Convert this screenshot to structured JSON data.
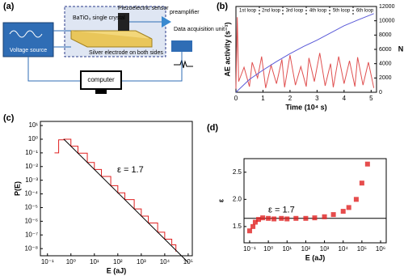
{
  "diagram": {
    "panel": "(a)",
    "voltage": "Voltage source",
    "crystal": "BaTiO₃ single crystal",
    "sensor": "Piezoelectric sensor",
    "preamp": "preamplifier",
    "daq": "Data acquisition unit",
    "electrode": "Silver electrode on both sides",
    "computer": "computer"
  },
  "chart_data": [
    {
      "type": "line",
      "panel": "(b)",
      "x_label": "Time (10⁴ s)",
      "y_label": "AE activity (s⁻¹)",
      "y2_label": "N",
      "loops": [
        "1st loop",
        "2nd loop",
        "3rd loop",
        "4th loop",
        "5th loop",
        "6th loop"
      ],
      "xlim": [
        0,
        5.2
      ],
      "xticks": [
        0,
        1,
        2,
        3,
        4,
        5
      ],
      "ylim": [
        0,
        12
      ],
      "y2lim": [
        0,
        12000
      ],
      "y2ticks": [
        0,
        2000,
        4000,
        6000,
        8000,
        10000,
        12000
      ],
      "series": [
        {
          "color": "#e05050",
          "x": [
            0,
            0.05,
            0.1,
            0.3,
            0.5,
            0.6,
            0.8,
            0.95,
            1.1,
            1.3,
            1.5,
            1.7,
            1.8,
            2.0,
            2.2,
            2.4,
            2.6,
            2.7,
            2.9,
            3.1,
            3.3,
            3.5,
            3.6,
            3.8,
            4.0,
            4.2,
            4.4,
            4.5,
            4.7,
            4.9,
            5.1
          ],
          "values": [
            0.5,
            10.5,
            1.5,
            3.5,
            0.8,
            4.2,
            2.0,
            5.0,
            0.6,
            3.8,
            1.2,
            4.6,
            0.7,
            5.2,
            1.0,
            3.6,
            0.8,
            4.8,
            1.5,
            5.5,
            0.9,
            4.0,
            0.7,
            5.0,
            1.2,
            4.4,
            0.8,
            4.9,
            1.0,
            4.2,
            0.6
          ]
        },
        {
          "color": "#5a5ad8",
          "axis": "y2",
          "x": [
            0,
            0.5,
            1.0,
            1.5,
            2.0,
            2.5,
            3.0,
            3.5,
            4.0,
            4.5,
            5.1
          ],
          "values": [
            0,
            1800,
            3100,
            4300,
            5400,
            6400,
            7300,
            8300,
            9300,
            10100,
            11000
          ]
        }
      ]
    },
    {
      "type": "line",
      "panel": "(c)",
      "x_label": "E (aJ)",
      "y_label": "P(E)",
      "annotation": "ε = 1.7",
      "log": true,
      "xlim": [
        0.05,
        150000
      ],
      "xticks": [
        {
          "value": 0.1,
          "label": "10⁻¹"
        },
        {
          "value": 1,
          "label": "10⁰"
        },
        {
          "value": 10,
          "label": "10¹"
        },
        {
          "value": 100,
          "label": "10²"
        },
        {
          "value": 1000,
          "label": "10³"
        },
        {
          "value": 10000,
          "label": "10⁴"
        },
        {
          "value": 100000,
          "label": "10⁵"
        }
      ],
      "ylim": [
        3e-09,
        20
      ],
      "yticks": [
        {
          "value": 10,
          "label": "10¹"
        },
        {
          "value": 1,
          "label": "10⁰"
        },
        {
          "value": 0.1,
          "label": "10⁻¹"
        },
        {
          "value": 0.01,
          "label": "10⁻²"
        },
        {
          "value": 0.001,
          "label": "10⁻³"
        },
        {
          "value": 0.0001,
          "label": "10⁻⁴"
        },
        {
          "value": 1e-05,
          "label": "10⁻⁵"
        },
        {
          "value": 1e-06,
          "label": "10⁻⁶"
        },
        {
          "value": 1e-07,
          "label": "10⁻⁷"
        },
        {
          "value": 1e-08,
          "label": "10⁻⁸"
        }
      ],
      "series": [
        {
          "color": "#e02020",
          "step": true,
          "x": [
            0.2,
            0.3,
            0.5,
            1,
            2,
            5,
            10,
            20,
            50,
            100,
            200,
            500,
            1000,
            2000,
            5000,
            10000,
            20000,
            30000
          ],
          "values": [
            0.1,
            0.9,
            1,
            0.31,
            0.095,
            0.02,
            0.0061,
            0.0019,
            0.0004,
            0.00012,
            3.8e-05,
            8e-06,
            2.4e-06,
            7.5e-07,
            1.6e-07,
            4.9e-08,
            1.9e-08,
            6e-09
          ]
        },
        {
          "color": "#000000",
          "x": [
            0.5,
            100000
          ],
          "values": [
            1,
            9.8e-10
          ]
        }
      ]
    },
    {
      "type": "scatter",
      "panel": "(d)",
      "x_label": "E (aJ)",
      "y_label": "ε",
      "annotation": "ε = 1.7",
      "log_x": true,
      "hline": 1.65,
      "xlim": [
        0.05,
        2000000
      ],
      "xticks": [
        {
          "value": 0.1,
          "label": "10⁻¹"
        },
        {
          "value": 1,
          "label": "10⁰"
        },
        {
          "value": 10,
          "label": "10¹"
        },
        {
          "value": 100,
          "label": "10²"
        },
        {
          "value": 1000,
          "label": "10³"
        },
        {
          "value": 10000,
          "label": "10⁴"
        },
        {
          "value": 100000,
          "label": "10⁵"
        },
        {
          "value": 1000000,
          "label": "10⁶"
        }
      ],
      "ylim": [
        1.2,
        2.75
      ],
      "yticks": [
        1.5,
        {
          "value": 2,
          "label": "2.0"
        },
        2.5
      ],
      "series": [
        {
          "color": "#e02020",
          "x": [
            0.1,
            0.15,
            0.2,
            0.3,
            0.5,
            1,
            2,
            5,
            10,
            30,
            100,
            300,
            1000,
            3000,
            10000,
            20000,
            50000,
            100000,
            200000
          ],
          "values": [
            1.42,
            1.5,
            1.58,
            1.63,
            1.66,
            1.65,
            1.64,
            1.65,
            1.64,
            1.65,
            1.65,
            1.66,
            1.68,
            1.72,
            1.78,
            1.85,
            2.0,
            2.3,
            2.65
          ]
        }
      ]
    }
  ]
}
